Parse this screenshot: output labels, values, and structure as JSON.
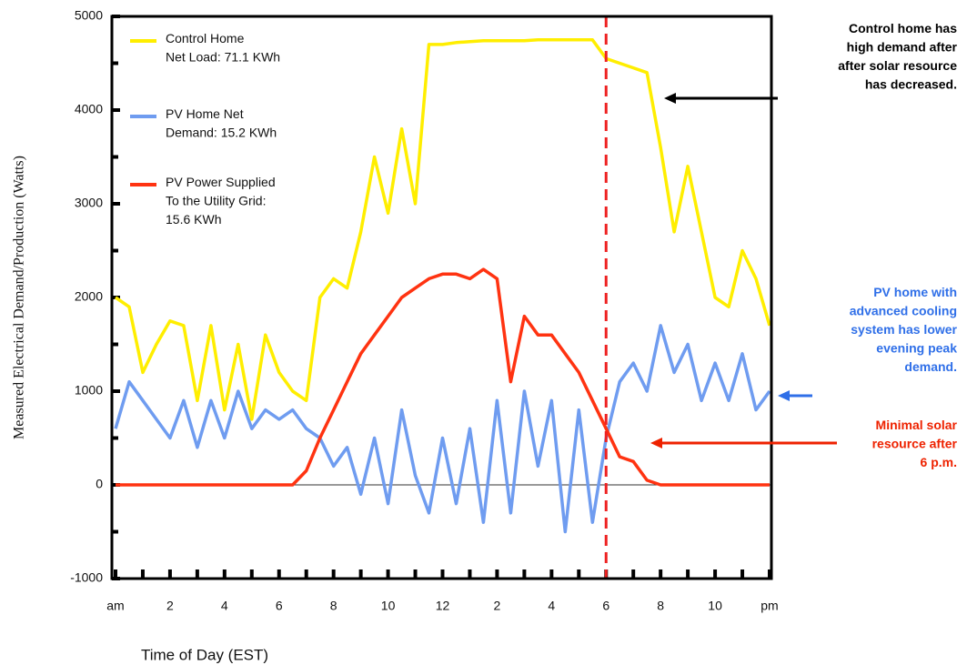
{
  "chart_data": {
    "type": "line",
    "xlabel": "Time of Day (EST)",
    "ylabel": "Measured Electrical Demand/Production (Watts)",
    "xlim": [
      0,
      24
    ],
    "xticks": [
      {
        "value": 0,
        "label": "am"
      },
      2,
      4,
      6,
      8,
      10,
      12,
      {
        "value": 14,
        "label": "2"
      },
      {
        "value": 16,
        "label": "4"
      },
      {
        "value": 18,
        "label": "6"
      },
      {
        "value": 20,
        "label": "8"
      },
      {
        "value": 22,
        "label": "10"
      },
      {
        "value": 24,
        "label": "pm"
      }
    ],
    "ylim": [
      -1000,
      5000
    ],
    "yticks": [
      -1000,
      0,
      1000,
      2000,
      3000,
      4000,
      5000
    ],
    "vline": {
      "value": 18,
      "color": "#ee2222"
    },
    "x": [
      0,
      0.5,
      1,
      1.5,
      2,
      2.5,
      3,
      3.5,
      4,
      4.5,
      5,
      5.5,
      6,
      6.5,
      7,
      7.5,
      8,
      8.5,
      9,
      9.5,
      10,
      10.5,
      11,
      11.5,
      12,
      12.5,
      13,
      13.5,
      14,
      14.5,
      15,
      15.5,
      16,
      16.5,
      17,
      17.5,
      18,
      18.5,
      19,
      19.5,
      20,
      20.5,
      21,
      21.5,
      22,
      22.5,
      23,
      23.5,
      24
    ],
    "series": [
      {
        "name": "Control Home\nNet Load: 71.1 KWh",
        "color": "#ffee00",
        "values": [
          2000,
          1900,
          1200,
          1500,
          1750,
          1700,
          900,
          1700,
          800,
          1500,
          700,
          1600,
          1200,
          1000,
          900,
          2000,
          2200,
          2100,
          2700,
          3500,
          2900,
          3800,
          3000,
          4700,
          4700,
          4720,
          4730,
          4740,
          4740,
          4740,
          4740,
          4750,
          4750,
          4750,
          4750,
          4750,
          4550,
          4500,
          4450,
          4400,
          3600,
          2700,
          3400,
          2700,
          2000,
          1900,
          2500,
          2200,
          1700
        ]
      },
      {
        "name": "PV Home Net\nDemand: 15.2 KWh",
        "color": "#6f9cf0",
        "values": [
          600,
          1100,
          900,
          700,
          500,
          900,
          400,
          900,
          500,
          1000,
          600,
          800,
          700,
          800,
          600,
          500,
          200,
          400,
          -100,
          500,
          -200,
          800,
          100,
          -300,
          500,
          -200,
          600,
          -400,
          900,
          -300,
          1000,
          200,
          900,
          -500,
          800,
          -400,
          500,
          1100,
          1300,
          1000,
          1700,
          1200,
          1500,
          900,
          1300,
          900,
          1400,
          800,
          1000
        ]
      },
      {
        "name": "PV Power Supplied\nTo the Utility Grid:\n15.6 KWh",
        "color": "#ff3311",
        "values": [
          0,
          0,
          0,
          0,
          0,
          0,
          0,
          0,
          0,
          0,
          0,
          0,
          0,
          0,
          150,
          500,
          800,
          1100,
          1400,
          1600,
          1800,
          2000,
          2100,
          2200,
          2250,
          2250,
          2200,
          2300,
          2200,
          1100,
          1800,
          1600,
          1600,
          1400,
          1200,
          900,
          600,
          300,
          250,
          50,
          0,
          0,
          0,
          0,
          0,
          0,
          0,
          0,
          0
        ]
      }
    ],
    "annotations": [
      {
        "lines": [
          "Control home has",
          "high demand after",
          "after solar resource",
          "has decreased."
        ],
        "color": "#000000"
      },
      {
        "lines": [
          "PV home with",
          "advanced cooling",
          "system has lower",
          "evening peak",
          "demand."
        ],
        "color": "#2f6fe8"
      },
      {
        "lines": [
          "Minimal solar",
          "resource after",
          "6 p.m."
        ],
        "color": "#ee2200"
      }
    ]
  }
}
